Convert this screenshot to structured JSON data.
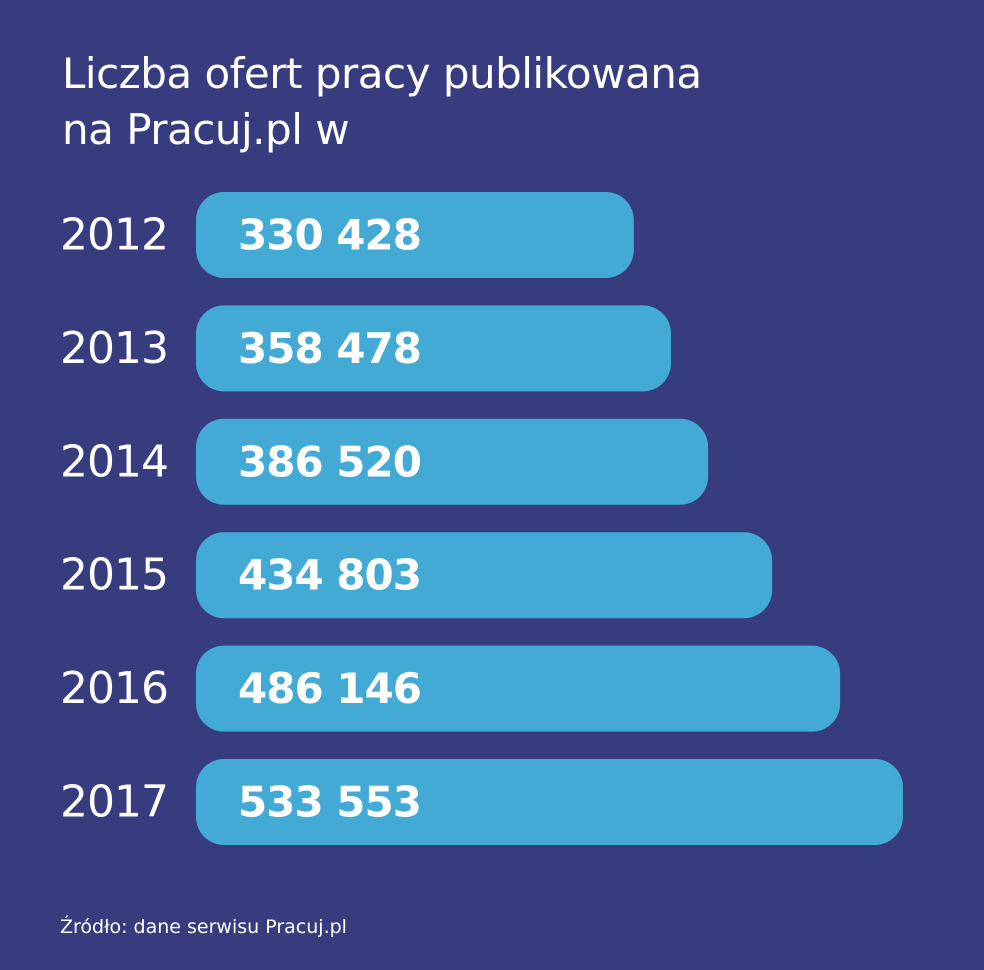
{
  "title": {
    "line1": "Liczba ofert pracy publikowana",
    "line2": "na Pracuj.pl w"
  },
  "source": "Źródło: dane serwisu Pracuj.pl",
  "colors": {
    "background": "#363c7d",
    "bar": "#42aad4",
    "text": "#ffffff"
  },
  "chart_data": {
    "type": "bar",
    "orientation": "horizontal",
    "title": "Liczba ofert pracy publikowana na Pracuj.pl w",
    "categories": [
      "2012",
      "2013",
      "2014",
      "2015",
      "2016",
      "2017"
    ],
    "values": [
      330428,
      358478,
      386520,
      434803,
      486146,
      533553
    ],
    "value_labels": [
      "330 428",
      "358 478",
      "386 520",
      "434 803",
      "486 146",
      "533 553"
    ],
    "xlabel": "",
    "ylabel": "",
    "grid": false,
    "legend": "none"
  }
}
